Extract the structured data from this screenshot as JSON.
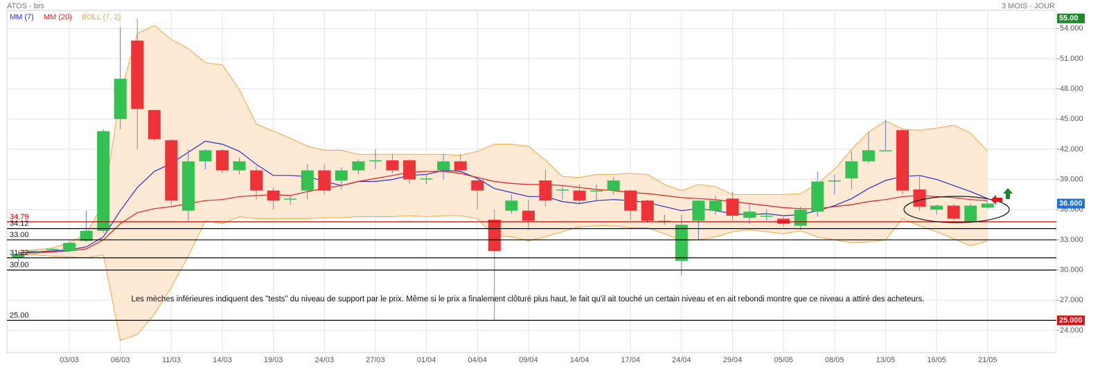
{
  "chart_data": {
    "type": "candlestick",
    "title": "ATOS - brs",
    "subtitle": "3 MOIS - JOUR",
    "categories": [
      null,
      null,
      null,
      "03/03",
      null,
      null,
      "06/03",
      null,
      null,
      "11/03",
      null,
      null,
      "14/03",
      null,
      null,
      "19/03",
      null,
      null,
      "24/03",
      null,
      null,
      "27/03",
      null,
      null,
      "01/04",
      null,
      null,
      "04/04",
      null,
      null,
      "09/04",
      null,
      null,
      "14/04",
      null,
      null,
      "17/04",
      null,
      null,
      "24/04",
      null,
      null,
      "29/04",
      null,
      null,
      "05/05",
      null,
      null,
      "08/05",
      null,
      null,
      "13/05",
      null,
      null,
      "16/05",
      null,
      null,
      "21/05"
    ],
    "open": [
      31.2,
      31.8,
      32.0,
      31.9,
      32.9,
      33.9,
      45,
      52.8,
      45.9,
      42.9,
      35.9,
      40.8,
      41.9,
      39.9,
      39.9,
      37.9,
      37.0,
      37.9,
      39.9,
      38.9,
      39.9,
      40.9,
      40.9,
      40.9,
      39.1,
      39.9,
      40.8,
      38.9,
      35.0,
      35.9,
      35.9,
      38.9,
      37.9,
      37.9,
      37.9,
      37.9,
      37.9,
      36.9,
      34.9,
      30.9,
      34.9,
      35.9,
      37.1,
      35.2,
      35.3,
      35.1,
      34.4,
      35.8,
      38.9,
      39.1,
      40.8,
      41.9,
      43.9,
      38.0,
      36.0,
      36.4,
      34.8,
      36.2
    ],
    "high": [
      31.9,
      32.0,
      32.2,
      32.9,
      35.9,
      44.0,
      54.1,
      55.0,
      45.9,
      43.0,
      42.0,
      42.0,
      42.0,
      41.2,
      40.3,
      38.2,
      37.5,
      40.5,
      40.5,
      40.2,
      41.0,
      42.0,
      41.5,
      41.0,
      39.5,
      41.5,
      41.5,
      39.0,
      36.0,
      37.5,
      37.0,
      40.0,
      38.3,
      38.5,
      38.5,
      39.2,
      38.0,
      37.0,
      35.5,
      35.5,
      37.0,
      37.4,
      37.8,
      36.6,
      36.0,
      35.3,
      36.3,
      39.8,
      39.5,
      41.8,
      43.7,
      44.9,
      44.0,
      39.3,
      36.5,
      36.6,
      36.6,
      36.8
    ],
    "low": [
      30.5,
      31.6,
      31.8,
      31.8,
      32.8,
      33.7,
      44.0,
      42.0,
      42.8,
      36.5,
      34.9,
      40.0,
      39.6,
      39.5,
      37.0,
      36.0,
      36.5,
      37.0,
      37.5,
      38.0,
      39.5,
      40.0,
      39.6,
      38.6,
      38.5,
      39.0,
      39.5,
      36.0,
      25.0,
      35.6,
      34.0,
      36.3,
      37.0,
      36.5,
      36.8,
      37.5,
      35.0,
      34.7,
      34.5,
      29.5,
      32.9,
      35.5,
      34.9,
      34.6,
      34.9,
      34.3,
      34.0,
      35.3,
      37.5,
      38.0,
      40.6,
      41.9,
      37.5,
      35.9,
      35.5,
      34.9,
      34.7,
      36.1
    ],
    "close": [
      31.6,
      31.9,
      32.1,
      32.7,
      33.9,
      43.8,
      49,
      46,
      43,
      36.9,
      40.8,
      41.9,
      39.9,
      40.8,
      37.9,
      36.9,
      37.1,
      39.9,
      37.9,
      39.9,
      40.8,
      40.9,
      39.9,
      39.0,
      39.1,
      40.8,
      39.9,
      37.9,
      31.9,
      36.9,
      34.9,
      36.9,
      38.0,
      36.9,
      37.9,
      38.9,
      35.9,
      34.9,
      34.9,
      34.5,
      36.9,
      36.9,
      35.4,
      35.8,
      35.4,
      34.6,
      36.0,
      38.8,
      38.9,
      40.8,
      41.9,
      41.9,
      37.9,
      36.3,
      36.4,
      35.1,
      36.4,
      36.6
    ],
    "up_color": "#33c152",
    "down_color": "#ee3338",
    "series": [
      {
        "name": "MM (7)",
        "color": "#2a2ad4",
        "values": [
          31.7,
          31.8,
          31.9,
          32.0,
          32.3,
          33.3,
          35.9,
          38.2,
          39.8,
          40.6,
          41.7,
          42.8,
          42.5,
          41.8,
          40.5,
          39.4,
          39.4,
          39.3,
          38.8,
          38.4,
          38.8,
          38.8,
          39.0,
          39.4,
          39.5,
          39.9,
          39.8,
          39.1,
          38.1,
          37.7,
          37.3,
          37.3,
          36.8,
          36.6,
          36.9,
          37.0,
          36.9,
          36.7,
          36.3,
          35.9,
          36.1,
          35.9,
          35.6,
          35.5,
          35.6,
          35.4,
          35.5,
          35.9,
          36.4,
          37.1,
          38.1,
          38.9,
          39.3,
          39.4,
          39.0,
          38.4,
          37.8,
          37.1
        ]
      },
      {
        "name": "MM (20)",
        "color": "#e01e1e",
        "values": [
          31.7,
          31.7,
          31.8,
          31.9,
          32.1,
          33.0,
          34.6,
          35.7,
          36.1,
          36.3,
          36.6,
          36.9,
          37.0,
          37.3,
          37.4,
          37.5,
          37.4,
          37.8,
          38.1,
          38.4,
          38.8,
          39.1,
          39.4,
          39.7,
          39.8,
          39.8,
          39.6,
          39.2,
          38.8,
          38.6,
          38.5,
          38.5,
          38.4,
          38.2,
          38.0,
          37.9,
          37.7,
          37.6,
          37.4,
          37.2,
          37.1,
          37.0,
          36.8,
          36.6,
          36.4,
          36.2,
          36.1,
          36.1,
          36.3,
          36.5,
          36.8,
          37.0,
          37.3,
          37.4,
          37.3,
          37.2,
          37.0,
          36.9
        ]
      },
      {
        "name": "BOLL (7, 2)",
        "color": "#f5a540",
        "fill_color": "#fde9d4",
        "upper": [
          31.9,
          32.0,
          32.2,
          32.7,
          33.6,
          36.6,
          47.5,
          53.5,
          54.3,
          52.9,
          52.0,
          50.6,
          50.4,
          47.9,
          44.5,
          43.8,
          43.1,
          42.3,
          41.9,
          41.9,
          41.5,
          41.5,
          41.5,
          41.5,
          41.5,
          41.5,
          41.4,
          41.8,
          42.5,
          42.5,
          42.3,
          40.9,
          39.3,
          39.2,
          39.5,
          39.5,
          39.6,
          39.5,
          38.5,
          37.9,
          38.5,
          38.3,
          37.5,
          37.5,
          37.5,
          37.5,
          37.6,
          38.6,
          40.0,
          42.0,
          43.7,
          44.8,
          44.0,
          43.9,
          44.1,
          44.4,
          43.6,
          41.8
        ],
        "lower": [
          31.5,
          31.5,
          31.4,
          31.3,
          31.2,
          31.5,
          23.0,
          23.6,
          25.6,
          28.3,
          31.4,
          34.9,
          34.6,
          35.3,
          35.1,
          35.1,
          35.1,
          35.1,
          35.2,
          35.2,
          35.3,
          35.3,
          35.3,
          35.4,
          35.3,
          35.4,
          35.4,
          35.1,
          33.4,
          33.3,
          32.9,
          33.3,
          33.8,
          34.3,
          34.4,
          34.4,
          34.2,
          34.2,
          33.6,
          32.9,
          33.0,
          33.3,
          33.8,
          34.0,
          33.8,
          33.6,
          33.9,
          33.3,
          33.0,
          32.7,
          32.8,
          33.0,
          35.1,
          34.4,
          33.8,
          33.1,
          32.4,
          32.9
        ]
      }
    ],
    "ylim": [
      21.8,
      55.8
    ],
    "yticks": [
      {
        "value": 24,
        "label": "24.000"
      },
      {
        "value": 27,
        "label": "27.000"
      },
      {
        "value": 30,
        "label": "30.000"
      },
      {
        "value": 33,
        "label": "33.000"
      },
      {
        "value": 36,
        "label": "36.000"
      },
      {
        "value": 39,
        "label": "39.000"
      },
      {
        "value": 42,
        "label": "42.000"
      },
      {
        "value": 45,
        "label": "45.000"
      },
      {
        "value": 48,
        "label": "48.000"
      },
      {
        "value": 51,
        "label": "51.000"
      },
      {
        "value": 54,
        "label": "54.000"
      }
    ],
    "grid": true,
    "levels": [
      {
        "value": 34.79,
        "label": "34.79",
        "color": "#c00000"
      },
      {
        "value": 34.12,
        "label": "34.12",
        "color": "#000000"
      },
      {
        "value": 33.0,
        "label": "33.00",
        "color": "#000000"
      },
      {
        "value": 31.22,
        "label": "31.22",
        "color": "#000000"
      },
      {
        "value": 30.0,
        "label": "30.00",
        "color": "#000000"
      },
      {
        "value": 25.0,
        "label": "25.00",
        "color": "#000000"
      }
    ],
    "price_markers": [
      {
        "value": 55,
        "label": "55.00",
        "color": "#1f8a2a"
      },
      {
        "value": 36.6,
        "label": "36.600",
        "color": "#1e6fd9"
      },
      {
        "value": 25,
        "label": "25.000",
        "color": "#d91414"
      }
    ],
    "annotation": "Les mèches inférieures indiquent des \"tests\" du niveau de support par le prix. Même si le prix a finalement clôturé plus haut, le fait qu'il ait touché un certain niveau et en ait rebondi montre que ce niveau a attiré des acheteurs."
  }
}
